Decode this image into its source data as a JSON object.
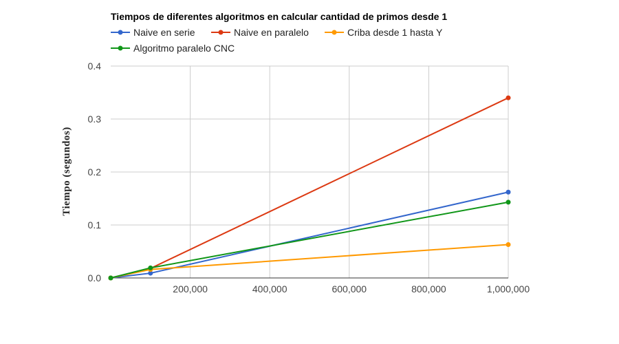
{
  "chart_data": {
    "type": "line",
    "title": "Tiempos de diferentes algoritmos en calcular cantidad de primos desde 1",
    "xlabel": "",
    "ylabel": "Tiempo (segundos)",
    "x": [
      0,
      100000,
      1000000
    ],
    "xlim": [
      0,
      1000000
    ],
    "xticks": [
      200000,
      400000,
      600000,
      800000,
      1000000
    ],
    "xtick_labels": [
      "200,000",
      "400,000",
      "600,000",
      "800,000",
      "1,000,000"
    ],
    "ylim": [
      0,
      0.4
    ],
    "yticks": [
      0,
      0.1,
      0.2,
      0.3,
      0.4
    ],
    "ytick_labels": [
      "0.0",
      "0.1",
      "0.2",
      "0.3",
      "0.4"
    ],
    "grid": true,
    "legend_position": "top",
    "series": [
      {
        "name": "Naive en serie",
        "color": "#3366cc",
        "values": [
          0,
          0.009,
          0.162
        ]
      },
      {
        "name": "Naive en paralelo",
        "color": "#dc3912",
        "values": [
          0,
          0.018,
          0.34
        ]
      },
      {
        "name": "Criba desde 1 hasta Y",
        "color": "#ff9900",
        "values": [
          0,
          0.016,
          0.063
        ]
      },
      {
        "name": "Algoritmo paralelo CNC",
        "color": "#109618",
        "values": [
          0,
          0.019,
          0.143
        ]
      }
    ]
  }
}
